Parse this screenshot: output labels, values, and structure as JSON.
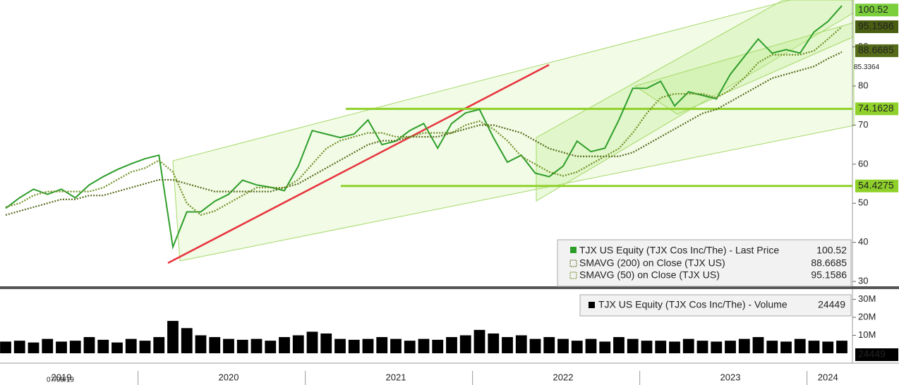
{
  "chart_data": [
    {
      "type": "line",
      "categories": [
        null,
        null,
        null,
        null,
        "2019",
        null,
        null,
        null,
        null,
        null,
        null,
        null,
        null,
        null,
        null,
        null,
        "2020",
        null,
        null,
        null,
        null,
        null,
        null,
        null,
        null,
        null,
        null,
        null,
        "2021",
        null,
        null,
        null,
        null,
        null,
        null,
        null,
        null,
        null,
        null,
        null,
        "2022",
        null,
        null,
        null,
        null,
        null,
        null,
        null,
        null,
        null,
        null,
        null,
        "2023",
        null,
        null,
        null,
        null,
        null,
        null,
        "2024",
        null
      ],
      "date_label": "07/08/19",
      "series": [
        {
          "name": "TJX US Equity (TJX Cos Inc/The) - Last Price",
          "color": "#2e9e2a",
          "values": [
            48.7,
            51.4,
            53.6,
            52.3,
            53.6,
            51.4,
            54.7,
            56.8,
            58.6,
            60.1,
            61.4,
            62.3,
            38.8,
            47.8,
            47.8,
            50.5,
            52.3,
            55.9,
            54.7,
            54.1,
            53.2,
            59.5,
            68.6,
            67.7,
            66.8,
            67.7,
            71.3,
            65.0,
            65.9,
            68.6,
            70.4,
            64.1,
            70.4,
            73.1,
            74.0,
            66.8,
            60.5,
            62.3,
            57.7,
            56.8,
            59.5,
            65.9,
            63.2,
            64.1,
            71.3,
            79.4,
            79.4,
            81.2,
            74.9,
            78.5,
            77.6,
            76.7,
            83.0,
            87.5,
            92.0,
            88.4,
            89.3,
            88.4,
            93.8,
            96.5,
            100.52
          ]
        },
        {
          "name": "SMAVG (200)  on Close (TJX US)",
          "color": "#556b1a",
          "values": [
            47,
            48,
            49,
            50,
            51,
            51,
            52,
            52,
            53,
            54,
            55,
            56,
            56,
            55,
            54,
            53,
            53,
            53,
            53,
            53,
            54,
            55,
            57,
            59,
            61,
            63,
            65,
            66,
            66,
            67,
            67,
            67,
            68,
            69,
            70,
            70,
            69,
            68,
            66,
            64,
            63,
            62,
            62,
            62,
            62,
            63,
            65,
            67,
            69,
            71,
            73,
            74,
            76,
            78,
            80,
            82,
            83,
            84,
            85,
            87,
            88.6685
          ]
        },
        {
          "name": "SMAVG (50)  on Close (TJX US)",
          "color": "#6f8f22",
          "values": [
            49,
            50,
            52,
            53,
            53,
            53,
            53,
            54,
            56,
            58,
            59,
            61,
            58,
            50,
            47,
            48,
            50,
            52,
            54,
            54,
            54,
            56,
            60,
            64,
            66,
            67,
            68,
            68,
            67,
            67,
            68,
            68,
            68,
            70,
            71,
            69,
            66,
            62,
            60,
            58,
            57,
            58,
            60,
            62,
            64,
            68,
            73,
            77,
            78,
            78,
            78,
            77,
            79,
            82,
            86,
            88,
            88,
            88,
            89,
            92,
            95.1586
          ]
        }
      ],
      "other_level": 85.3364,
      "levels": [
        74.1628,
        54.4275
      ],
      "ylim": [
        28.4,
        102
      ],
      "yticks": [
        30,
        40,
        50,
        60,
        70,
        80,
        90
      ]
    },
    {
      "type": "bar",
      "series": [
        {
          "name": "TJX US Equity (TJX Cos Inc/The) - Volume",
          "color": "#000000",
          "values": [
            6500000,
            7000000,
            6000000,
            8000000,
            6500000,
            7000000,
            9000000,
            7500000,
            6000000,
            8000000,
            7000000,
            9000000,
            18000000,
            14000000,
            10000000,
            9000000,
            8000000,
            7500000,
            8000000,
            7000000,
            9000000,
            10000000,
            12000000,
            11000000,
            8000000,
            7500000,
            8000000,
            9000000,
            8000000,
            7000000,
            8000000,
            7500000,
            9000000,
            10000000,
            13000000,
            11000000,
            9000000,
            10000000,
            8000000,
            9000000,
            8000000,
            7000000,
            8000000,
            6500000,
            9000000,
            8000000,
            7000000,
            7000000,
            6500000,
            8000000,
            7000000,
            6500000,
            7000000,
            8000000,
            9000000,
            7000000,
            6500000,
            8000000,
            7000000,
            6500000,
            7000000
          ]
        }
      ],
      "last_label": "24449",
      "ylim": [
        0,
        35700000
      ],
      "yticks": [
        {
          "value": 10000000,
          "label": "10M"
        },
        {
          "value": 20000000,
          "label": "20M"
        },
        {
          "value": 30000000,
          "label": "30M"
        }
      ]
    }
  ]
}
